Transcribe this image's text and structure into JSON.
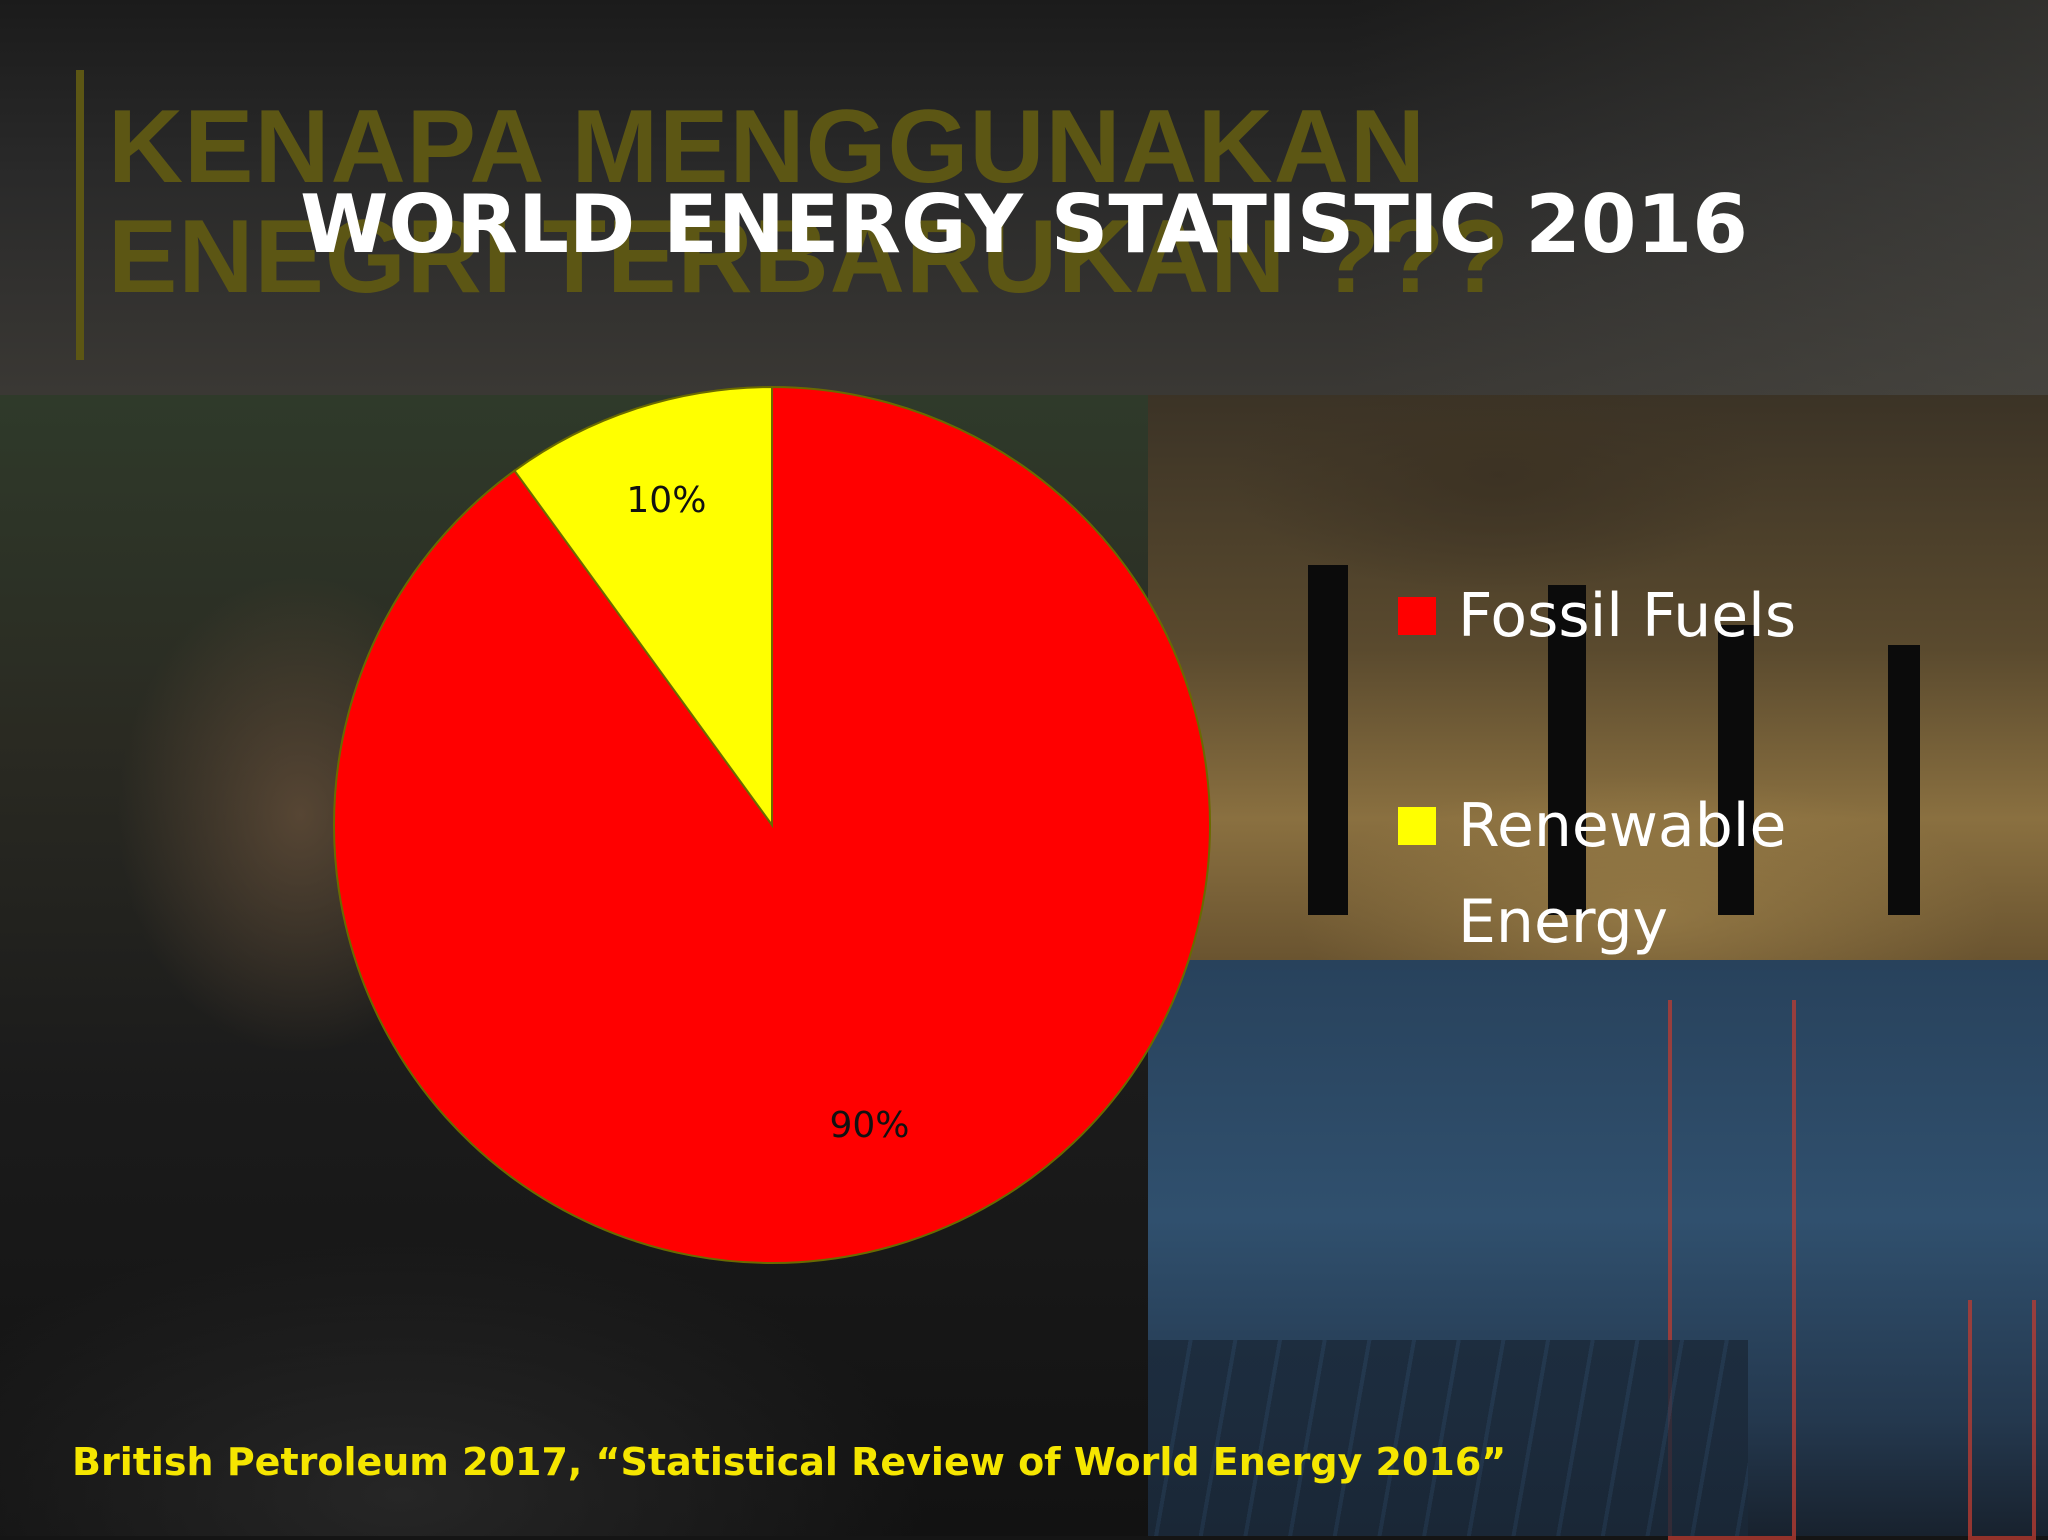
{
  "slide": {
    "heading": "KENAPA MENGGUNAKAN\nENEGRI TERBARUKAN ???",
    "source": "British Petroleum 2017, “Statistical Review of World Energy 2016”"
  },
  "chart_data": {
    "type": "pie",
    "title": "WORLD ENERGY STATISTIC 2016",
    "categories": [
      "Fossil Fuels",
      "Renewable Energy"
    ],
    "values": [
      90,
      10
    ],
    "labels": [
      "90%",
      "10%"
    ],
    "colors": [
      "#ff0000",
      "#ffff00"
    ],
    "legend": "right"
  }
}
